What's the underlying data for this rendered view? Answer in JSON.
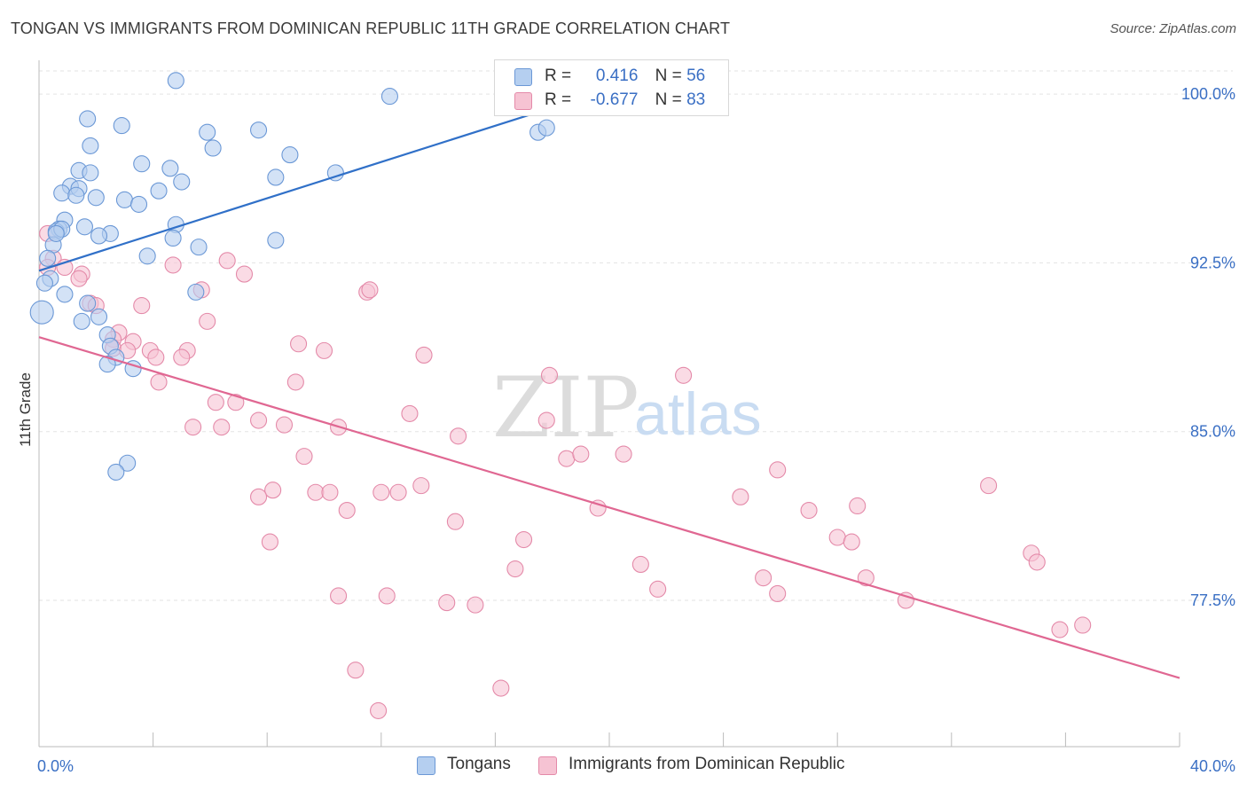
{
  "title": "TONGAN VS IMMIGRANTS FROM DOMINICAN REPUBLIC 11TH GRADE CORRELATION CHART",
  "source": "Source: ZipAtlas.com",
  "watermark": {
    "zip": "ZIP",
    "atlas": "atlas"
  },
  "legend": {
    "r_label": "R =",
    "n_label": "N =",
    "rows": [
      {
        "r": "0.416",
        "n": "56"
      },
      {
        "r": "-0.677",
        "n": "83"
      }
    ]
  },
  "colors": {
    "blue_fill": "#b5cff0",
    "blue_stroke": "#6b98d6",
    "blue_line": "#3070c8",
    "pink_fill": "#f6c3d3",
    "pink_stroke": "#e48aa9",
    "pink_line": "#e06792",
    "axis_text": "#3a6fc4"
  },
  "chart_data": {
    "type": "scatter",
    "title": "TONGAN VS IMMIGRANTS FROM DOMINICAN REPUBLIC 11TH GRADE CORRELATION CHART",
    "xlabel": "",
    "ylabel": "11th Grade",
    "xlim": [
      0,
      40
    ],
    "ylim": [
      71.0,
      101.5
    ],
    "x_tick_labels": [
      "0.0%",
      "40.0%"
    ],
    "y_ticks": [
      77.5,
      85.0,
      92.5,
      100.0
    ],
    "y_tick_labels": [
      "77.5%",
      "85.0%",
      "92.5%",
      "100.0%"
    ],
    "grid": true,
    "legend_placement": "top-center",
    "series": [
      {
        "name": "Tongans",
        "r": 0.416,
        "n": 56,
        "trend": {
          "x0": 0.0,
          "y0": 92.15,
          "x1": 19.5,
          "y1": 100.0
        },
        "points": [
          [
            4.8,
            100.6
          ],
          [
            12.3,
            99.9
          ],
          [
            1.7,
            98.9
          ],
          [
            2.9,
            98.6
          ],
          [
            5.9,
            98.3
          ],
          [
            7.7,
            98.4
          ],
          [
            1.8,
            97.7
          ],
          [
            6.1,
            97.6
          ],
          [
            8.8,
            97.3
          ],
          [
            3.6,
            96.9
          ],
          [
            4.6,
            96.7
          ],
          [
            1.4,
            96.6
          ],
          [
            1.8,
            96.5
          ],
          [
            10.4,
            96.5
          ],
          [
            8.3,
            96.3
          ],
          [
            5.0,
            96.1
          ],
          [
            1.1,
            95.9
          ],
          [
            1.4,
            95.8
          ],
          [
            4.2,
            95.7
          ],
          [
            0.8,
            95.6
          ],
          [
            1.3,
            95.5
          ],
          [
            2.0,
            95.4
          ],
          [
            3.0,
            95.3
          ],
          [
            0.9,
            94.4
          ],
          [
            4.8,
            94.2
          ],
          [
            1.6,
            94.1
          ],
          [
            0.7,
            94.0
          ],
          [
            0.6,
            93.9
          ],
          [
            2.5,
            93.8
          ],
          [
            2.1,
            93.7
          ],
          [
            4.7,
            93.6
          ],
          [
            8.3,
            93.5
          ],
          [
            0.5,
            93.3
          ],
          [
            5.6,
            93.2
          ],
          [
            3.8,
            92.8
          ],
          [
            0.3,
            92.7
          ],
          [
            0.4,
            91.8
          ],
          [
            0.2,
            91.6
          ],
          [
            5.5,
            91.2
          ],
          [
            0.9,
            91.1
          ],
          [
            1.7,
            90.7
          ],
          [
            0.1,
            90.3
          ],
          [
            2.1,
            90.1
          ],
          [
            1.5,
            89.9
          ],
          [
            2.4,
            89.3
          ],
          [
            2.5,
            88.8
          ],
          [
            2.7,
            88.3
          ],
          [
            2.4,
            88.0
          ],
          [
            3.3,
            87.8
          ],
          [
            3.1,
            83.6
          ],
          [
            2.7,
            83.2
          ],
          [
            17.5,
            98.3
          ],
          [
            17.8,
            98.5
          ],
          [
            0.8,
            94.0
          ],
          [
            0.6,
            93.8
          ],
          [
            3.5,
            95.1
          ]
        ]
      },
      {
        "name": "Immigrants from Dominican Republic",
        "r": -0.677,
        "n": 83,
        "trend": {
          "x0": 0.0,
          "y0": 89.2,
          "x1": 40.0,
          "y1": 74.05
        },
        "points": [
          [
            0.3,
            93.8
          ],
          [
            0.5,
            92.7
          ],
          [
            0.3,
            92.3
          ],
          [
            0.9,
            92.3
          ],
          [
            1.5,
            92.0
          ],
          [
            1.4,
            91.8
          ],
          [
            7.2,
            92.0
          ],
          [
            4.7,
            92.4
          ],
          [
            5.7,
            91.3
          ],
          [
            11.5,
            91.2
          ],
          [
            11.6,
            91.3
          ],
          [
            1.8,
            90.7
          ],
          [
            2.0,
            90.6
          ],
          [
            3.6,
            90.6
          ],
          [
            5.9,
            89.9
          ],
          [
            2.8,
            89.4
          ],
          [
            2.6,
            89.1
          ],
          [
            3.3,
            89.0
          ],
          [
            2.6,
            88.7
          ],
          [
            3.1,
            88.6
          ],
          [
            3.9,
            88.6
          ],
          [
            5.2,
            88.6
          ],
          [
            9.1,
            88.9
          ],
          [
            10.0,
            88.6
          ],
          [
            13.5,
            88.4
          ],
          [
            4.1,
            88.3
          ],
          [
            5.0,
            88.3
          ],
          [
            4.2,
            87.2
          ],
          [
            9.0,
            87.2
          ],
          [
            17.9,
            87.5
          ],
          [
            22.6,
            87.5
          ],
          [
            6.2,
            86.3
          ],
          [
            6.9,
            86.3
          ],
          [
            7.7,
            85.5
          ],
          [
            13.0,
            85.8
          ],
          [
            17.8,
            85.5
          ],
          [
            5.4,
            85.2
          ],
          [
            6.4,
            85.2
          ],
          [
            8.6,
            85.3
          ],
          [
            10.5,
            85.2
          ],
          [
            14.7,
            84.8
          ],
          [
            18.5,
            83.8
          ],
          [
            19.0,
            84.0
          ],
          [
            20.5,
            84.0
          ],
          [
            9.3,
            83.9
          ],
          [
            25.9,
            83.3
          ],
          [
            9.7,
            82.3
          ],
          [
            8.2,
            82.4
          ],
          [
            10.2,
            82.3
          ],
          [
            12.0,
            82.3
          ],
          [
            12.6,
            82.3
          ],
          [
            13.4,
            82.6
          ],
          [
            7.7,
            82.1
          ],
          [
            24.6,
            82.1
          ],
          [
            33.3,
            82.6
          ],
          [
            10.8,
            81.5
          ],
          [
            14.6,
            81.0
          ],
          [
            19.6,
            81.6
          ],
          [
            27.0,
            81.5
          ],
          [
            28.7,
            81.7
          ],
          [
            8.1,
            80.1
          ],
          [
            17.0,
            80.2
          ],
          [
            28.0,
            80.3
          ],
          [
            28.5,
            80.1
          ],
          [
            34.8,
            79.6
          ],
          [
            35.0,
            79.2
          ],
          [
            16.7,
            78.9
          ],
          [
            21.1,
            79.1
          ],
          [
            25.4,
            78.5
          ],
          [
            29.0,
            78.5
          ],
          [
            21.7,
            78.0
          ],
          [
            25.9,
            77.8
          ],
          [
            10.5,
            77.7
          ],
          [
            12.2,
            77.7
          ],
          [
            14.3,
            77.4
          ],
          [
            15.3,
            77.3
          ],
          [
            30.4,
            77.5
          ],
          [
            35.8,
            76.2
          ],
          [
            36.6,
            76.4
          ],
          [
            11.1,
            74.4
          ],
          [
            16.2,
            73.6
          ],
          [
            11.9,
            72.6
          ],
          [
            6.6,
            92.6
          ]
        ]
      }
    ]
  }
}
